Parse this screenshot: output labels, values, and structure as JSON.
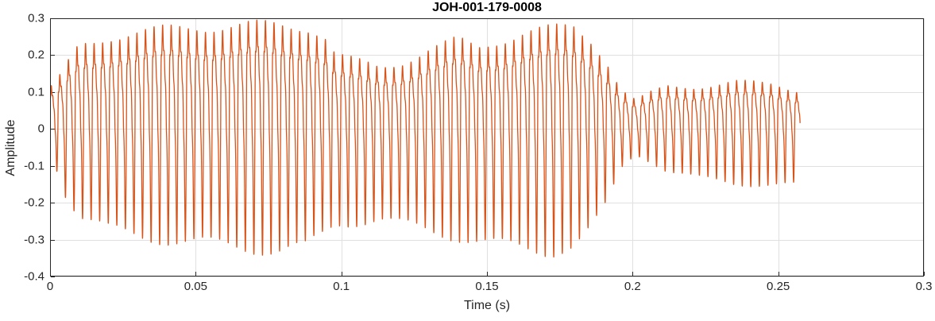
{
  "figure": {
    "background": "#ffffff"
  },
  "chart_data": {
    "type": "line",
    "title": "JOH-001-179-0008",
    "xlabel": "Time (s)",
    "ylabel": "Amplitude",
    "xlim": [
      0,
      0.3
    ],
    "ylim": [
      -0.4,
      0.3
    ],
    "xticks": [
      0,
      0.05,
      0.1,
      0.15,
      0.2,
      0.25,
      0.3
    ],
    "xtick_labels": [
      "0",
      "0.05",
      "0.1",
      "0.15",
      "0.2",
      "0.25",
      "0.3"
    ],
    "yticks": [
      -0.4,
      -0.3,
      -0.2,
      -0.1,
      0,
      0.1,
      0.2,
      0.3
    ],
    "ytick_labels": [
      "-0.4",
      "-0.3",
      "-0.2",
      "-0.1",
      "0",
      "0.1",
      "0.2",
      "0.3"
    ],
    "grid": true,
    "line_color": "#D95319",
    "axis_color": "#262626",
    "grid_color": "#E0E0E0",
    "waveform": {
      "t_start": 0,
      "t_end": 0.2575,
      "f0_hz": 340,
      "harmonics": [
        [
          1,
          1.0,
          0
        ],
        [
          2,
          0.55,
          1.1
        ],
        [
          3,
          0.3,
          2.3
        ],
        [
          4,
          0.18,
          3.4
        ],
        [
          5,
          0.1,
          4.2
        ]
      ],
      "envelope": [
        [
          0.0,
          0.11,
          0.05
        ],
        [
          0.002,
          0.12,
          0.1
        ],
        [
          0.005,
          0.16,
          0.17
        ],
        [
          0.01,
          0.22,
          0.23
        ],
        [
          0.02,
          0.24,
          0.26
        ],
        [
          0.035,
          0.25,
          0.28
        ],
        [
          0.05,
          0.27,
          0.3
        ],
        [
          0.065,
          0.28,
          0.32
        ],
        [
          0.078,
          0.29,
          0.34
        ],
        [
          0.088,
          0.295,
          0.34
        ],
        [
          0.094,
          0.27,
          0.3
        ],
        [
          0.098,
          0.21,
          0.27
        ],
        [
          0.105,
          0.19,
          0.26
        ],
        [
          0.113,
          0.17,
          0.25
        ],
        [
          0.12,
          0.18,
          0.26
        ],
        [
          0.13,
          0.21,
          0.27
        ],
        [
          0.14,
          0.23,
          0.28
        ],
        [
          0.147,
          0.21,
          0.29
        ],
        [
          0.155,
          0.23,
          0.3
        ],
        [
          0.163,
          0.25,
          0.31
        ],
        [
          0.172,
          0.26,
          0.32
        ],
        [
          0.18,
          0.27,
          0.31
        ],
        [
          0.186,
          0.24,
          0.27
        ],
        [
          0.191,
          0.19,
          0.21
        ],
        [
          0.196,
          0.11,
          0.11
        ],
        [
          0.201,
          0.08,
          0.07
        ],
        [
          0.206,
          0.1,
          0.09
        ],
        [
          0.212,
          0.12,
          0.12
        ],
        [
          0.222,
          0.12,
          0.14
        ],
        [
          0.235,
          0.13,
          0.15
        ],
        [
          0.248,
          0.12,
          0.15
        ],
        [
          0.2575,
          0.1,
          0.15
        ]
      ]
    }
  }
}
